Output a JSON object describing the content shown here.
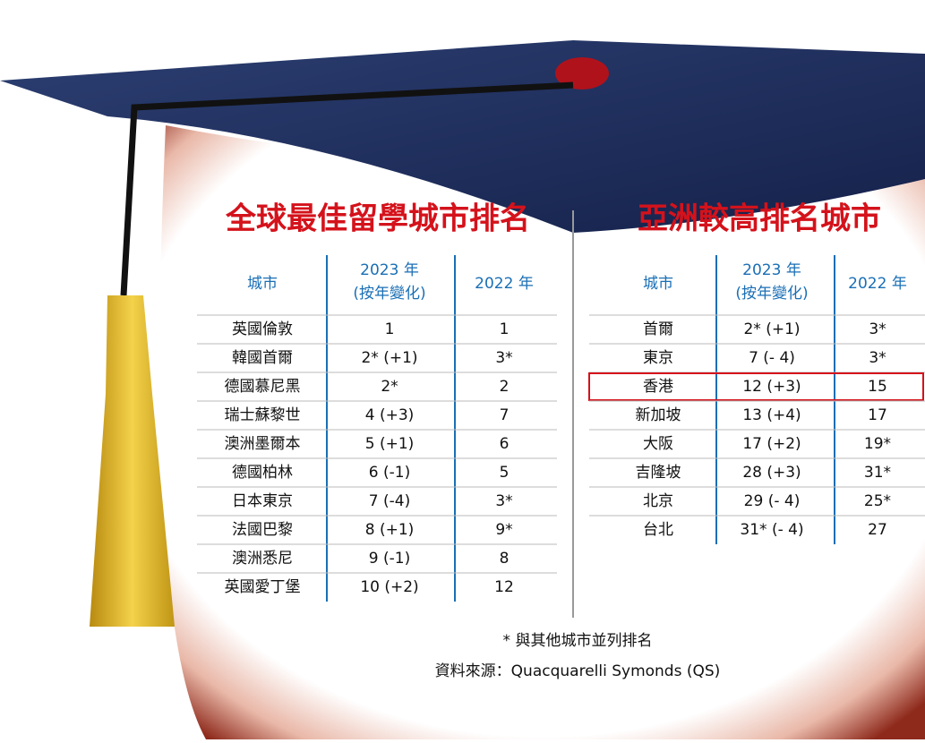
{
  "left": {
    "title": "全球最佳留學城市排名",
    "headers": [
      [
        "城市"
      ],
      [
        "2023 年",
        "(按年變化)"
      ],
      [
        "2022 年"
      ]
    ],
    "rows": [
      [
        "英國倫敦",
        "1",
        "1"
      ],
      [
        "韓國首爾",
        "2* (+1)",
        "3*"
      ],
      [
        "德國慕尼黑",
        "2*",
        "2"
      ],
      [
        "瑞士蘇黎世",
        "4 (+3)",
        "7"
      ],
      [
        "澳洲墨爾本",
        "5 (+1)",
        "6"
      ],
      [
        "德國柏林",
        "6 (-1)",
        "5"
      ],
      [
        "日本東京",
        "7 (-4)",
        "3*"
      ],
      [
        "法國巴黎",
        "8 (+1)",
        "9*"
      ],
      [
        "澳洲悉尼",
        "9 (-1)",
        "8"
      ],
      [
        "英國愛丁堡",
        "10 (+2)",
        "12"
      ]
    ]
  },
  "right": {
    "title": "亞洲較高排名城市",
    "headers": [
      [
        "城市"
      ],
      [
        "2023 年",
        "(按年變化)"
      ],
      [
        "2022 年"
      ]
    ],
    "rows": [
      [
        "首爾",
        "2* (+1)",
        "3*"
      ],
      [
        "東京",
        "7 (- 4)",
        "3*"
      ],
      [
        "香港",
        "12 (+3)",
        "15"
      ],
      [
        "新加坡",
        "13 (+4)",
        "17"
      ],
      [
        "大阪",
        "17 (+2)",
        "19*"
      ],
      [
        "吉隆坡",
        "28 (+3)",
        "31*"
      ],
      [
        "北京",
        "29 (- 4)",
        "25*"
      ],
      [
        "台北",
        "31* (- 4)",
        "27"
      ]
    ],
    "highlight_row": 2
  },
  "footnote": "* 與其他城市並列排名",
  "source": "資料來源：Quacquarelli Symonds (QS)"
}
